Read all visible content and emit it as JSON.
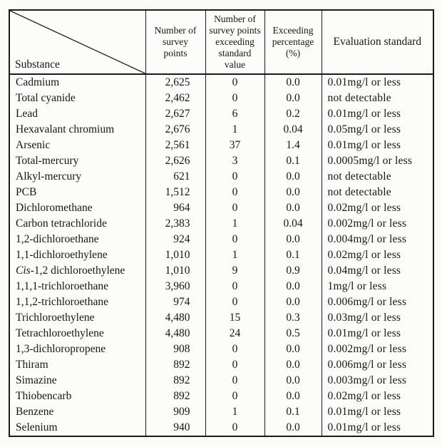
{
  "table": {
    "corner_label": "Substance",
    "headers": [
      {
        "id": "survey-points",
        "lines": [
          "Number of",
          "survey",
          "points"
        ]
      },
      {
        "id": "exceeding-points",
        "lines": [
          "Number of",
          "survey points",
          "exceeding",
          "standard",
          "value"
        ]
      },
      {
        "id": "exceeding-percentage",
        "lines": [
          "Exceeding",
          "percentage",
          "(%)"
        ]
      },
      {
        "id": "evaluation-standard",
        "lines": [
          "Evaluation standard"
        ]
      }
    ],
    "rows": [
      {
        "substance": "Cadmium",
        "points": "2,625",
        "exceeding": "0",
        "percentage": "0.0",
        "standard": "0.01mg/l or less"
      },
      {
        "substance": "Total cyanide",
        "points": "2,462",
        "exceeding": "0",
        "percentage": "0.0",
        "standard": "not detectable"
      },
      {
        "substance": "Lead",
        "points": "2,627",
        "exceeding": "6",
        "percentage": "0.2",
        "standard": "0.01mg/l or less"
      },
      {
        "substance": "Hexavalant chromium",
        "points": "2,676",
        "exceeding": "1",
        "percentage": "0.04",
        "standard": "0.05mg/l or less"
      },
      {
        "substance": "Arsenic",
        "points": "2,561",
        "exceeding": "37",
        "percentage": "1.4",
        "standard": "0.01mg/l or less"
      },
      {
        "substance": "Total-mercury",
        "points": "2,626",
        "exceeding": "3",
        "percentage": "0.1",
        "standard": "0.0005mg/l or less"
      },
      {
        "substance": "Alkyl-mercury",
        "points": "621",
        "exceeding": "0",
        "percentage": "0.0",
        "standard": "not detectable"
      },
      {
        "substance": "PCB",
        "points": "1,512",
        "exceeding": "0",
        "percentage": "0.0",
        "standard": "not detectable"
      },
      {
        "substance": "Dichloromethane",
        "points": "964",
        "exceeding": "0",
        "percentage": "0.0",
        "standard": "0.02mg/l or less"
      },
      {
        "substance": "Carbon tetrachloride",
        "points": "2,383",
        "exceeding": "1",
        "percentage": "0.04",
        "standard": "0.002mg/l or less"
      },
      {
        "substance": "1,2-dichloroethane",
        "points": "924",
        "exceeding": "0",
        "percentage": "0.0",
        "standard": "0.004mg/l or less"
      },
      {
        "substance": "1,1-dichloroethylene",
        "points": "1,010",
        "exceeding": "1",
        "percentage": "0.1",
        "standard": "0.02mg/l or less"
      },
      {
        "substance": "Cis-1,2 dichloroethylene",
        "italic_prefix": "Cis",
        "points": "1,010",
        "exceeding": "9",
        "percentage": "0.9",
        "standard": "0.04mg/l or less"
      },
      {
        "substance": "1,1,1-trichloroethane",
        "points": "3,960",
        "exceeding": "0",
        "percentage": "0.0",
        "standard": "1mg/l or less"
      },
      {
        "substance": "1,1,2-trichloroethane",
        "points": "974",
        "exceeding": "0",
        "percentage": "0.0",
        "standard": "0.006mg/l or less"
      },
      {
        "substance": "Trichloroethylene",
        "points": "4,480",
        "exceeding": "15",
        "percentage": "0.3",
        "standard": "0.03mg/l or less"
      },
      {
        "substance": "Tetrachloroethylene",
        "points": "4,480",
        "exceeding": "24",
        "percentage": "0.5",
        "standard": "0.01mg/l or less"
      },
      {
        "substance": "1,3-dichloropropene",
        "points": "908",
        "exceeding": "0",
        "percentage": "0.0",
        "standard": "0.002mg/l or less"
      },
      {
        "substance": "Thiram",
        "points": "892",
        "exceeding": "0",
        "percentage": "0.0",
        "standard": "0.006mg/l or less"
      },
      {
        "substance": "Simazine",
        "points": "892",
        "exceeding": "0",
        "percentage": "0.0",
        "standard": "0.003mg/l or less"
      },
      {
        "substance": "Thiobencarb",
        "points": "892",
        "exceeding": "0",
        "percentage": "0.0",
        "standard": "0.02mg/l or less"
      },
      {
        "substance": "Benzene",
        "points": "909",
        "exceeding": "1",
        "percentage": "0.1",
        "standard": "0.01mg/l or less"
      },
      {
        "substance": "Selenium",
        "points": "940",
        "exceeding": "0",
        "percentage": "0.0",
        "standard": "0.01mg/l or less"
      }
    ],
    "colors": {
      "paper": "#fbfbf8",
      "ink": "#161616",
      "border": "#1a1a1a"
    }
  }
}
